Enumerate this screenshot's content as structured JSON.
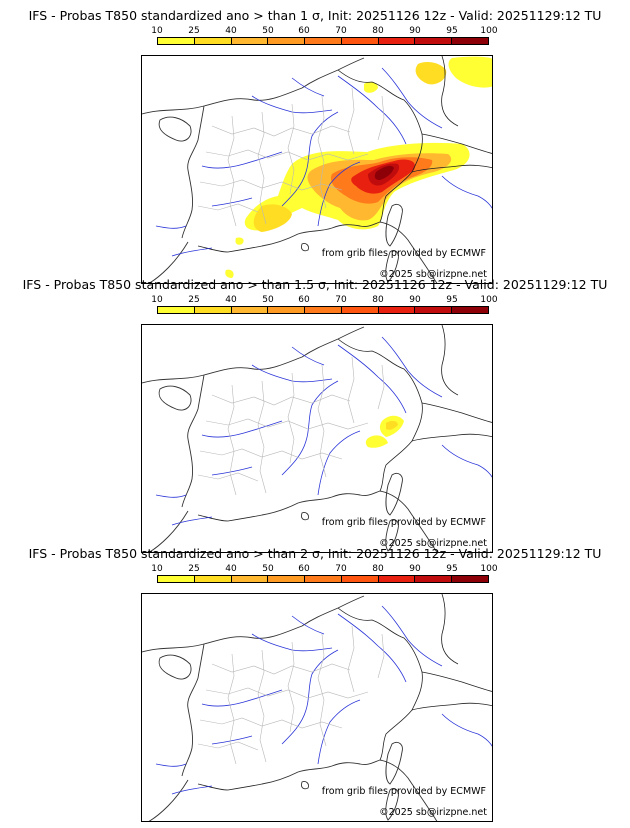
{
  "legend": {
    "ticks": [
      "10",
      "25",
      "40",
      "50",
      "60",
      "70",
      "80",
      "90",
      "95",
      "100"
    ],
    "colors": [
      "#ffff33",
      "#ffdd22",
      "#ffb830",
      "#ff9a22",
      "#ff7a1a",
      "#ff5511",
      "#e8200f",
      "#c00c0c",
      "#8e0008"
    ]
  },
  "panels": [
    {
      "title": "IFS - Probas T850  standardized ano > than 1 σ, Init: 20251126 12z - Valid: 20251129:12 TU",
      "source": "from grib files provided by ECMWF",
      "copyright": "©2025 sb@irizpne.net"
    },
    {
      "title": "IFS - Probas T850  standardized ano > than 1.5 σ, Init: 20251126 12z - Valid: 20251129:12 TU",
      "source": "from grib files provided by ECMWF",
      "copyright": "©2025 sb@irizpne.net"
    },
    {
      "title": "IFS - Probas T850  standardized ano > than 2 σ, Init: 20251126 12z - Valid: 20251129:12 TU",
      "source": "from grib files provided by ECMWF",
      "copyright": "©2025 sb@irizpne.net"
    }
  ]
}
